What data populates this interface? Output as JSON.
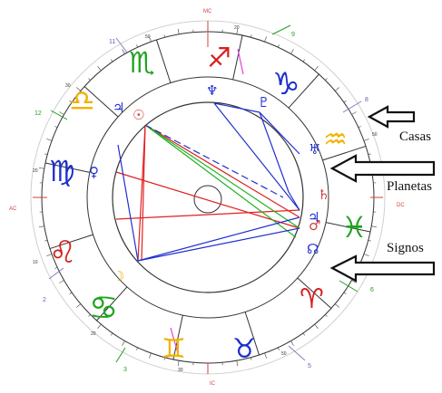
{
  "annotations": {
    "houses": "Casas",
    "planets": "Planetas",
    "signs": "Signos"
  },
  "axes": {
    "mc": "MC",
    "ic": "IC",
    "ac": "AC",
    "dc": "DC"
  },
  "house_numbers": [
    "9",
    "8",
    "6",
    "5",
    "3",
    "2",
    "12",
    "11"
  ],
  "degree_marks": [
    "20",
    "50",
    "30",
    "20",
    "10",
    "20",
    "30",
    "50",
    "40",
    "50"
  ],
  "sign_glyphs": [
    "♐",
    "♑",
    "♒",
    "♓",
    "♈",
    "♉",
    "♊",
    "♋",
    "♌",
    "♍",
    "♎",
    "♏"
  ],
  "planet_glyphs": [
    "♆",
    "♇",
    "♅",
    "♄",
    "♂",
    "♃",
    "☊",
    "☽",
    "♀",
    "♃",
    "☉"
  ],
  "colors": {
    "fire": "#d62020",
    "earth": "#1fa31f",
    "air": "#f2b200",
    "water": "#1d2fc9",
    "red_aspect": "#e02020",
    "blue_aspect": "#2030d0",
    "green_aspect": "#20b020",
    "magenta": "#e040e0",
    "house_line": "#8080c0"
  }
}
